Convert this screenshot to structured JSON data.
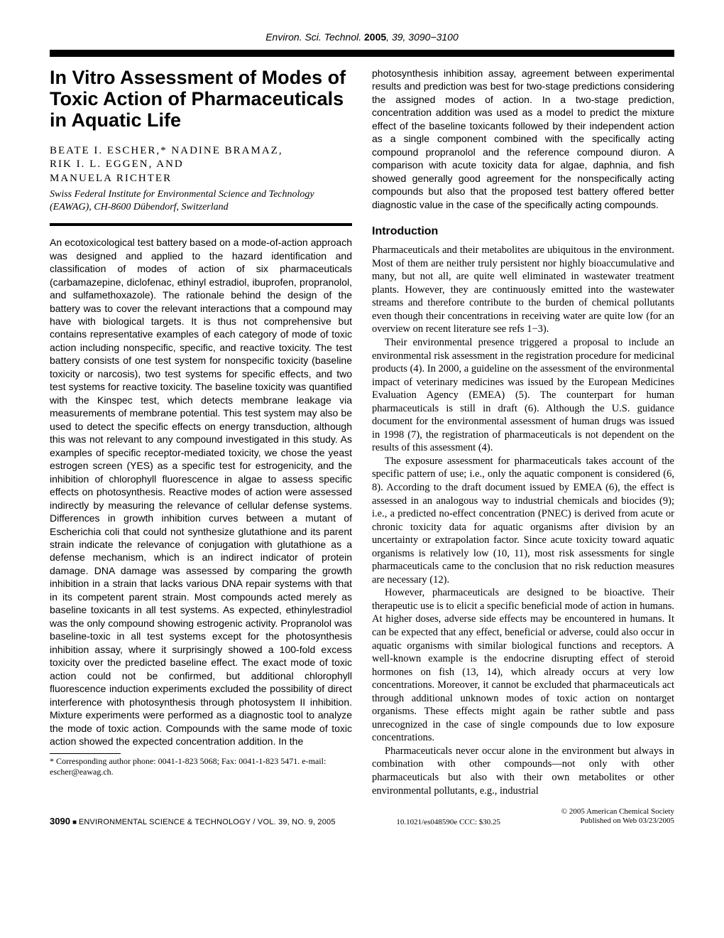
{
  "running_head": {
    "journal": "Environ. Sci. Technol.",
    "year": "2005",
    "volume_pages": "39, 3090−3100"
  },
  "title": "In Vitro Assessment of Modes of Toxic Action of Pharmaceuticals in Aquatic Life",
  "authors_line1": "BEATE I. ESCHER,* NADINE BRAMAZ,",
  "authors_line2": "RIK I. L. EGGEN, AND",
  "authors_line3": "MANUELA RICHTER",
  "affiliation": "Swiss Federal Institute for Environmental Science and Technology (EAWAG), CH-8600 Dübendorf, Switzerland",
  "abstract": "An ecotoxicological test battery based on a mode-of-action approach was designed and applied to the hazard identification and classification of modes of action of six pharmaceuticals (carbamazepine, diclofenac, ethinyl estradiol, ibuprofen, propranolol, and sulfamethoxazole). The rationale behind the design of the battery was to cover the relevant interactions that a compound may have with biological targets. It is thus not comprehensive but contains representative examples of each category of mode of toxic action including nonspecific, specific, and reactive toxicity. The test battery consists of one test system for nonspecific toxicity (baseline toxicity or narcosis), two test systems for specific effects, and two test systems for reactive toxicity. The baseline toxicity was quantified with the Kinspec test, which detects membrane leakage via measurements of membrane potential. This test system may also be used to detect the specific effects on energy transduction, although this was not relevant to any compound investigated in this study. As examples of specific receptor-mediated toxicity, we chose the yeast estrogen screen (YES) as a specific test for estrogenicity, and the inhibition of chlorophyll fluorescence in algae to assess specific effects on photosynthesis. Reactive modes of action were assessed indirectly by measuring the relevance of cellular defense systems. Differences in growth inhibition curves between a mutant of Escherichia coli that could not synthesize glutathione and its parent strain indicate the relevance of conjugation with glutathione as a defense mechanism, which is an indirect indicator of protein damage. DNA damage was assessed by comparing the growth inhibition in a strain that lacks various DNA repair systems with that in its competent parent strain. Most compounds acted merely as baseline toxicants in all test systems. As expected, ethinylestradiol was the only compound showing estrogenic activity. Propranolol was baseline-toxic in all test systems except for the photosynthesis inhibition assay, where it surprisingly showed a 100-fold excess toxicity over the predicted baseline effect. The exact mode of toxic action could not be confirmed, but additional chlorophyll fluorescence induction experiments excluded the possibility of direct interference with photosynthesis through photosystem II inhibition. Mixture experiments were performed as a diagnostic tool to analyze the mode of toxic action. Compounds with the same mode of toxic action showed the expected concentration addition. In the",
  "abstract_cont": "photosynthesis inhibition assay, agreement between experimental results and prediction was best for two-stage predictions considering the assigned modes of action. In a two-stage prediction, concentration addition was used as a model to predict the mixture effect of the baseline toxicants followed by their independent action as a single component combined with the specifically acting compound propranolol and the reference compound diuron. A comparison with acute toxicity data for algae, daphnia, and fish showed generally good agreement for the nonspecifically acting compounds but also that the proposed test battery offered better diagnostic value in the case of the specifically acting compounds.",
  "section_heading": "Introduction",
  "intro_p1": "Pharmaceuticals and their metabolites are ubiquitous in the environment. Most of them are neither truly persistent nor highly bioaccumulative and many, but not all, are quite well eliminated in wastewater treatment plants. However, they are continuously emitted into the wastewater streams and therefore contribute to the burden of chemical pollutants even though their concentrations in receiving water are quite low (for an overview on recent literature see refs 1−3).",
  "intro_p2": "Their environmental presence triggered a proposal to include an environmental risk assessment in the registration procedure for medicinal products (4). In 2000, a guideline on the assessment of the environmental impact of veterinary medicines was issued by the European Medicines Evaluation Agency (EMEA) (5). The counterpart for human pharmaceuticals is still in draft (6). Although the U.S. guidance document for the environmental assessment of human drugs was issued in 1998 (7), the registration of pharmaceuticals is not dependent on the results of this assessment (4).",
  "intro_p3": "The exposure assessment for pharmaceuticals takes account of the specific pattern of use; i.e., only the aquatic component is considered (6, 8). According to the draft document issued by EMEA (6), the effect is assessed in an analogous way to industrial chemicals and biocides (9); i.e., a predicted no-effect concentration (PNEC) is derived from acute or chronic toxicity data for aquatic organisms after division by an uncertainty or extrapolation factor. Since acute toxicity toward aquatic organisms is relatively low (10, 11), most risk assessments for single pharmaceuticals came to the conclusion that no risk reduction measures are necessary (12).",
  "intro_p4": "However, pharmaceuticals are designed to be bioactive. Their therapeutic use is to elicit a specific beneficial mode of action in humans. At higher doses, adverse side effects may be encountered in humans. It can be expected that any effect, beneficial or adverse, could also occur in aquatic organisms with similar biological functions and receptors. A well-known example is the endocrine disrupting effect of steroid hormones on fish (13, 14), which already occurs at very low concentrations. Moreover, it cannot be excluded that pharmaceuticals act through additional unknown modes of toxic action on nontarget organisms. These effects might again be rather subtle and pass unrecognized in the case of single compounds due to low exposure concentrations.",
  "intro_p5": "Pharmaceuticals never occur alone in the environment but always in combination with other compounds—not only with other pharmaceuticals but also with their own metabolites or other environmental pollutants, e.g., industrial",
  "footnote": "* Corresponding author phone: 0041-1-823 5068; Fax: 0041-1-823 5471. e-mail: escher@eawag.ch.",
  "footer": {
    "page_number": "3090",
    "journal_ref": "ENVIRONMENTAL SCIENCE & TECHNOLOGY / VOL. 39, NO. 9, 2005",
    "doi": "10.1021/es048590e CCC: $30.25",
    "copyright": "© 2005 American Chemical Society",
    "published": "Published on Web 03/23/2005"
  }
}
